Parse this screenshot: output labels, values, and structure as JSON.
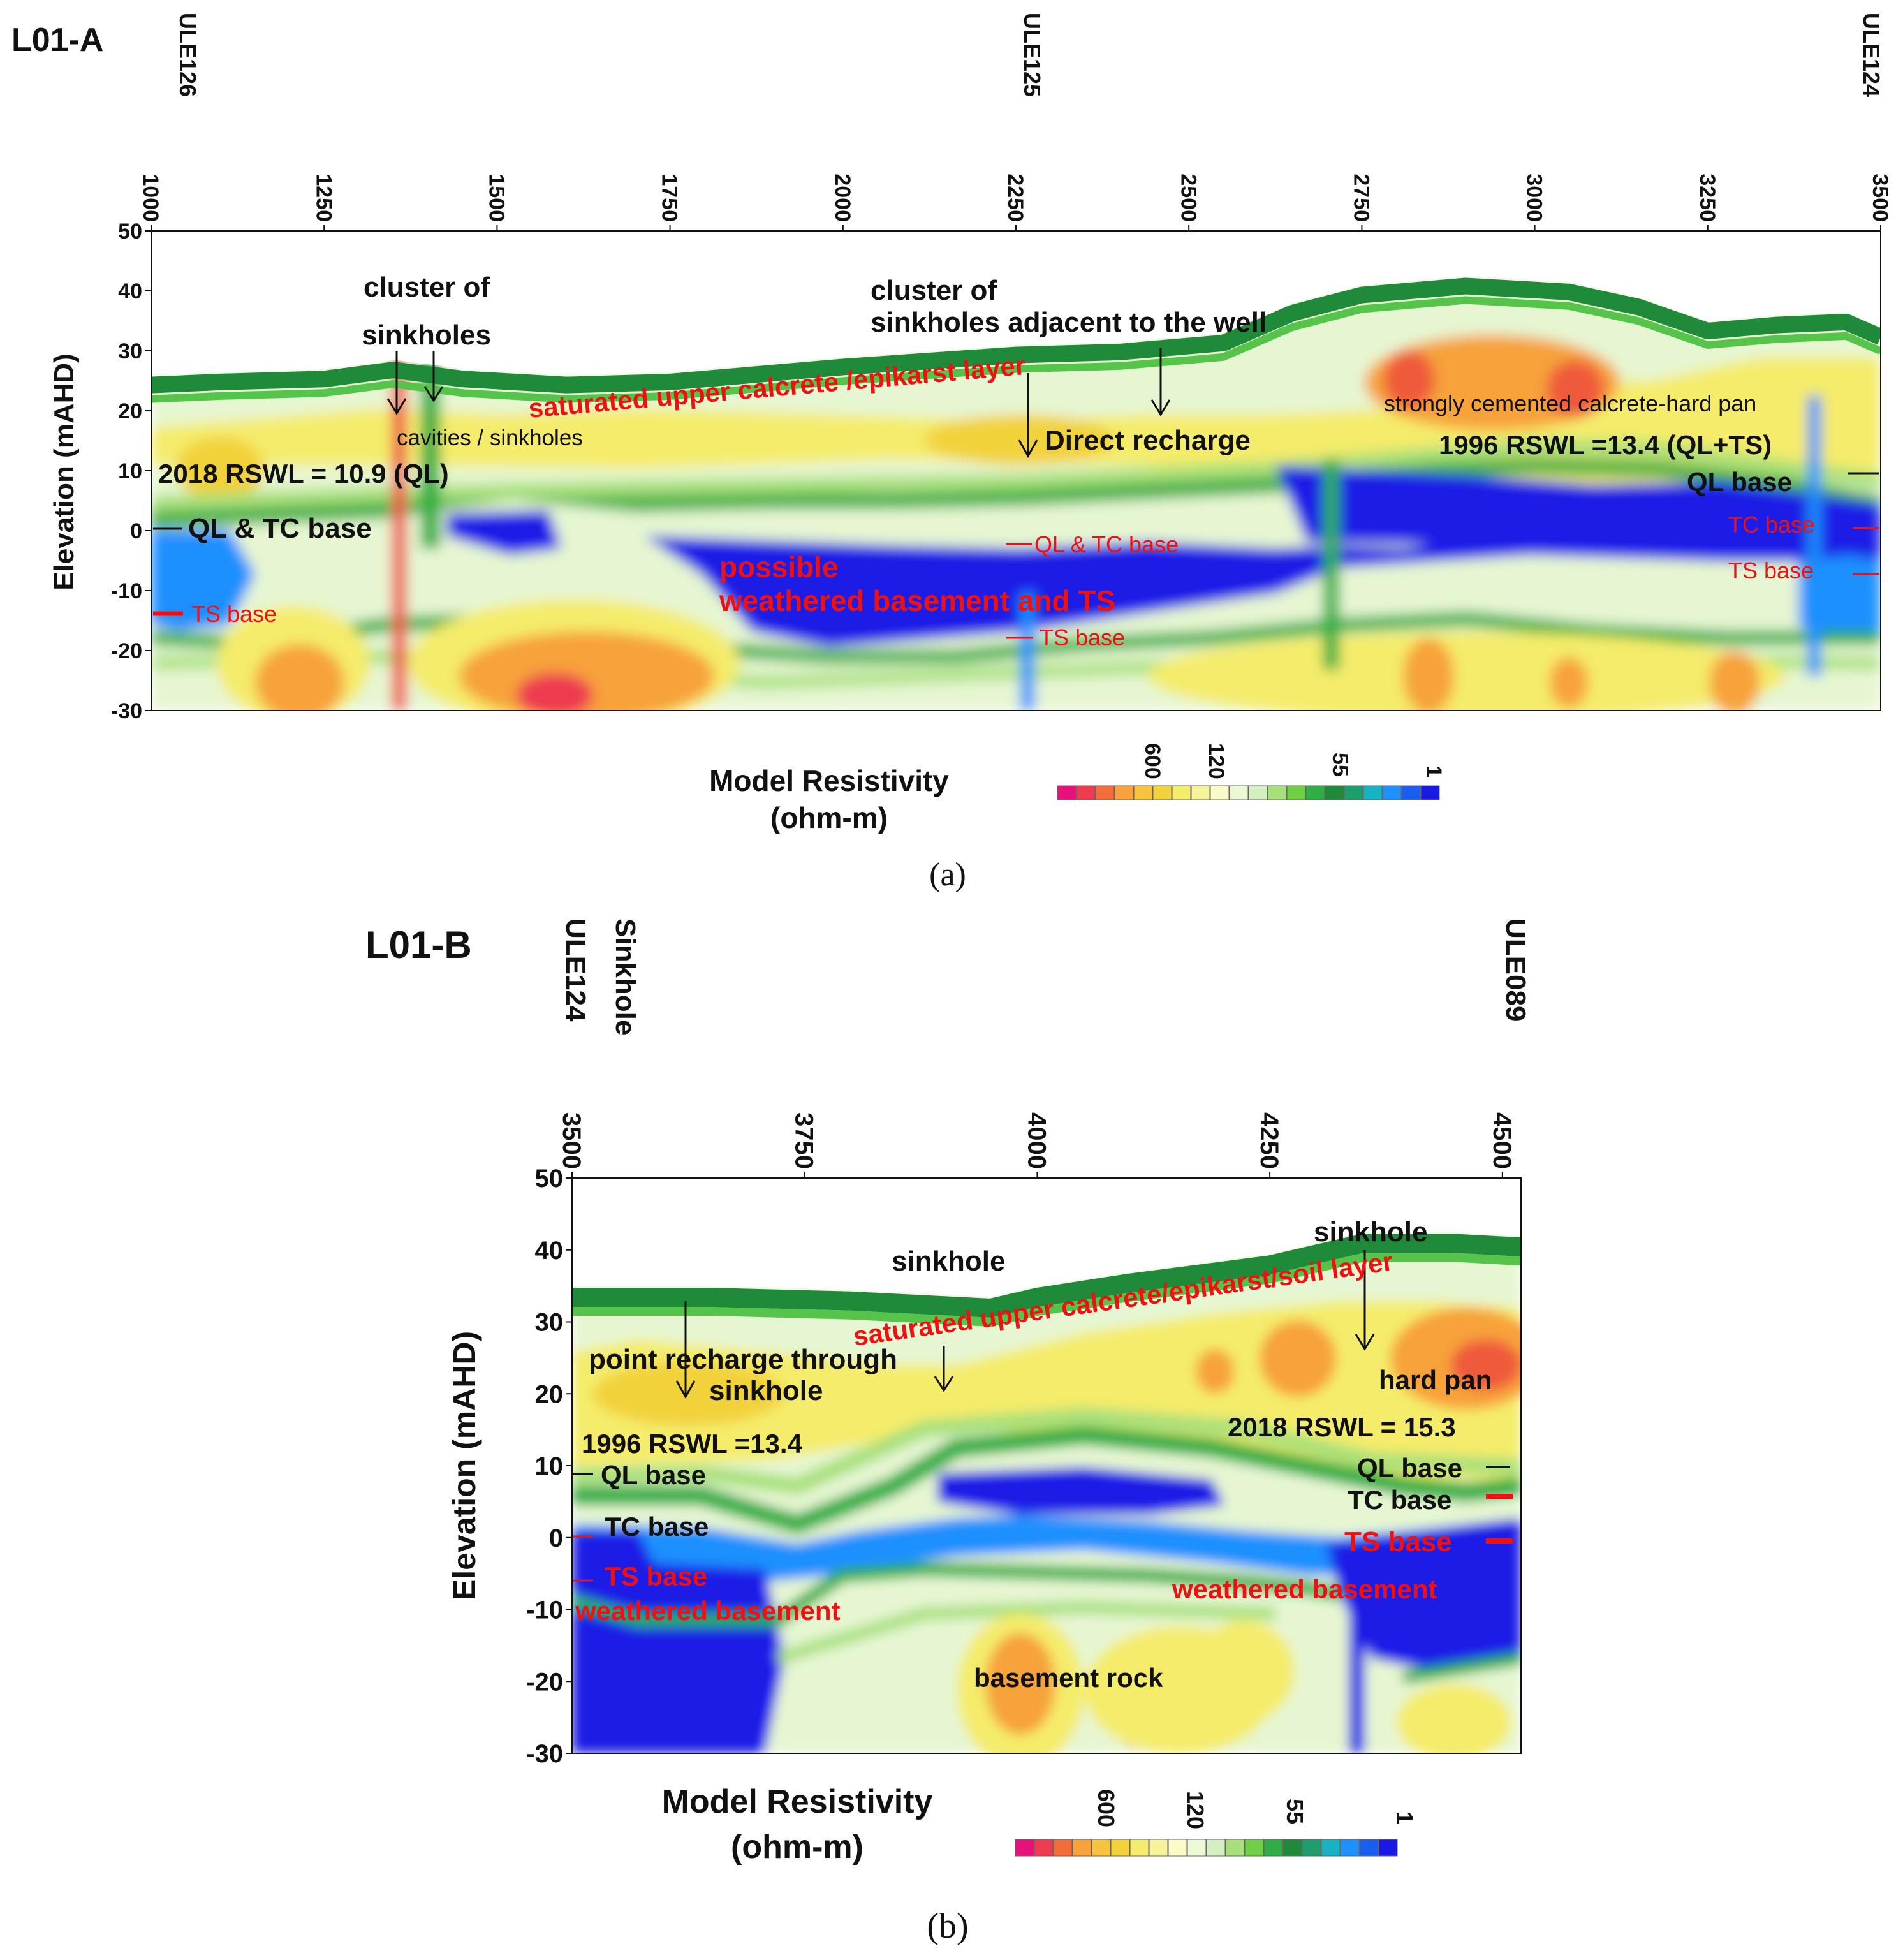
{
  "panels": [
    {
      "id": "a",
      "title": "L01-A",
      "caption": "(a)",
      "wells": [
        "ULE126",
        "ULE125",
        "ULE124"
      ],
      "annotations": {
        "cluster1_line1": "cluster of",
        "cluster1_line2": "sinkholes",
        "cluster2_line1": "cluster of",
        "cluster2_line2": "sinkholes adjacent to the well",
        "saturated": "saturated upper calcrete /epikarst layer",
        "cavities": "cavities / sinkholes",
        "direct": "Direct recharge",
        "cemented": "strongly cemented calcrete-hard pan",
        "rswl2018": "2018 RSWL = 10.9 (QL)",
        "rswl1996": "1996 RSWL =13.4 (QL+TS)",
        "ql_tc_base": "QL & TC base",
        "ts_base_left": "TS base",
        "possible1": "possible",
        "possible2": "weathered basement and TS",
        "ql_tc_base_mid": "QL & TC base",
        "ts_base_mid": "TS base",
        "ql_base_right": "QL base",
        "tc_base_right": "TC base",
        "ts_base_right": "TS base"
      },
      "legend": {
        "title1": "Model Resistivity",
        "title2": "(ohm-m)",
        "ticks": [
          "600",
          "120",
          "55",
          "1"
        ]
      }
    },
    {
      "id": "b",
      "title": "L01-B",
      "caption": "(b)",
      "wells": [
        "ULE124",
        "Sinkhole",
        "ULE089"
      ],
      "annotations": {
        "sinkhole1": "sinkhole",
        "sinkhole2": "sinkhole",
        "saturated": "saturated upper calcrete/epikarst/soil layer",
        "point1": "point recharge through",
        "point2": "sinkhole",
        "rswl1996": "1996 RSWL =13.4",
        "ql_base_left": "QL base",
        "tc_base_left": "TC base",
        "ts_base_left": "TS base",
        "weathered_left": "weathered basement",
        "hardpan": "hard pan",
        "rswl2018": "2018 RSWL = 15.3",
        "ql_base_right": "QL base",
        "tc_base_right": "TC base",
        "ts_base_right": "TS base",
        "weathered_right": "weathered basement",
        "basement": "basement rock"
      },
      "legend": {
        "title1": "Model Resistivity",
        "title2": "(ohm-m)",
        "ticks": [
          "600",
          "120",
          "55",
          "1"
        ]
      }
    }
  ],
  "colors": {
    "annotation_red": "#ee1111",
    "text_black": "#111111",
    "very_low": "#1a1ae6",
    "low": "#1e90ff",
    "green": "#2fae45",
    "light_green": "#a7e07a",
    "pale": "#e6f6d2",
    "yellow": "#f4ec6b",
    "orange": "#f7a23a",
    "high": "#ee3b4f"
  },
  "chart_data": [
    {
      "type": "heatmap",
      "panel": "a",
      "title": "L01-A",
      "xlabel": "",
      "ylabel": "Elevation (mAHD)",
      "xlim": [
        1000,
        3500
      ],
      "ylim": [
        -30,
        50
      ],
      "x_ticks": [
        1000,
        1250,
        1500,
        1750,
        2000,
        2250,
        2500,
        2750,
        3000,
        3250,
        3500
      ],
      "y_ticks": [
        50,
        40,
        30,
        20,
        10,
        0,
        -10,
        -20,
        -30
      ],
      "surface": [
        [
          1000,
          26
        ],
        [
          1100,
          26.5
        ],
        [
          1250,
          27
        ],
        [
          1350,
          28.5
        ],
        [
          1450,
          27
        ],
        [
          1600,
          26
        ],
        [
          1750,
          26.5
        ],
        [
          2000,
          29
        ],
        [
          2250,
          31
        ],
        [
          2400,
          31.5
        ],
        [
          2550,
          33
        ],
        [
          2650,
          38
        ],
        [
          2750,
          41
        ],
        [
          2900,
          42.5
        ],
        [
          3050,
          41.5
        ],
        [
          3150,
          39
        ],
        [
          3250,
          35
        ],
        [
          3350,
          36
        ],
        [
          3450,
          36.5
        ],
        [
          3500,
          34
        ]
      ],
      "markers": {
        "ULE126": 1000,
        "ULE125": 2180,
        "ULE124": 3500
      },
      "colorbar": {
        "label": "Model Resistivity (ohm-m)",
        "tick_labels": [
          "600",
          "120",
          "55",
          "1"
        ]
      }
    },
    {
      "type": "heatmap",
      "panel": "b",
      "title": "L01-B",
      "xlabel": "",
      "ylabel": "Elevation (mAHD)",
      "xlim": [
        3500,
        4520
      ],
      "ylim": [
        -30,
        50
      ],
      "x_ticks": [
        3500,
        3750,
        4000,
        4250,
        4500
      ],
      "y_ticks": [
        50,
        40,
        30,
        20,
        10,
        0,
        -10,
        -20,
        -30
      ],
      "surface": [
        [
          3500,
          35
        ],
        [
          3650,
          35
        ],
        [
          3800,
          34.5
        ],
        [
          3950,
          33.5
        ],
        [
          4000,
          35
        ],
        [
          4100,
          37
        ],
        [
          4250,
          39.5
        ],
        [
          4350,
          42.5
        ],
        [
          4450,
          42.5
        ],
        [
          4520,
          42
        ]
      ],
      "markers": {
        "ULE124": 3500,
        "Sinkhole": 3560,
        "ULE089": 4520
      },
      "colorbar": {
        "label": "Model Resistivity (ohm-m)",
        "tick_labels": [
          "600",
          "120",
          "55",
          "1"
        ]
      }
    }
  ]
}
